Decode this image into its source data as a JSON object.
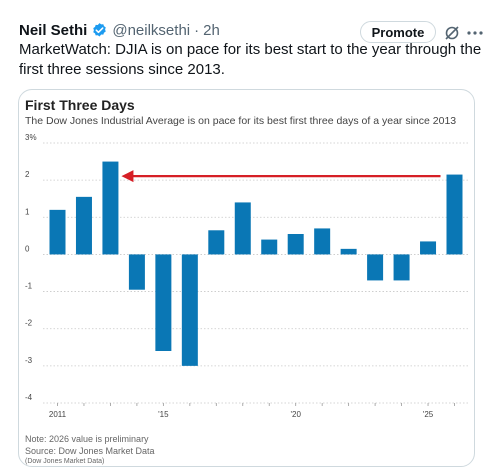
{
  "tweet": {
    "author_name": "Neil Sethi",
    "handle": "@neilksethi",
    "separator": "·",
    "time": "2h",
    "promote_label": "Promote",
    "text": "MarketWatch: DJIA is on pace for its best start to the year through the first three sessions since 2013.",
    "icons": {
      "verified": "verified-badge-icon",
      "grok": "grok-icon",
      "more": "more-icon"
    },
    "accent_color": "#1d9bf0"
  },
  "chart_data": {
    "type": "bar",
    "title": "First Three Days",
    "subtitle": "The Dow Jones Industrial Average is on pace for its best first three days of a year since 2013",
    "categories": [
      "2011",
      "2012",
      "2013",
      "2014",
      "2015",
      "2016",
      "2017",
      "2018",
      "2019",
      "2020",
      "2021",
      "2022",
      "2023",
      "2024",
      "2025",
      "2026"
    ],
    "values": [
      1.2,
      1.55,
      2.5,
      -0.95,
      -2.6,
      -3.0,
      0.65,
      1.4,
      0.4,
      0.55,
      0.7,
      0.15,
      -0.7,
      -0.7,
      0.35,
      2.15
    ],
    "x_tick_labels": [
      {
        "category": "2011",
        "label": "2011"
      },
      {
        "category": "2015",
        "label": "'15"
      },
      {
        "category": "2020",
        "label": "'20"
      },
      {
        "category": "2025",
        "label": "'25"
      }
    ],
    "y_ticks": [
      {
        "value": 3,
        "label": "3%"
      },
      {
        "value": 2,
        "label": "2"
      },
      {
        "value": 1,
        "label": "1"
      },
      {
        "value": 0,
        "label": "0"
      },
      {
        "value": -1,
        "label": "-1"
      },
      {
        "value": -2,
        "label": "-2"
      },
      {
        "value": -3,
        "label": "-3"
      },
      {
        "value": -4,
        "label": "-4"
      }
    ],
    "ylim": [
      -4,
      3
    ],
    "grid": "horizontal-dotted",
    "bar_color": "#0a77b5",
    "annotation": {
      "type": "arrow",
      "from_category": "2026",
      "to_category": "2013",
      "value": 2,
      "color": "#d61f26"
    },
    "notes": [
      "Note: 2026 value is preliminary",
      "Source: Dow Jones Market Data",
      "(Dow Jones Market Data)"
    ]
  }
}
